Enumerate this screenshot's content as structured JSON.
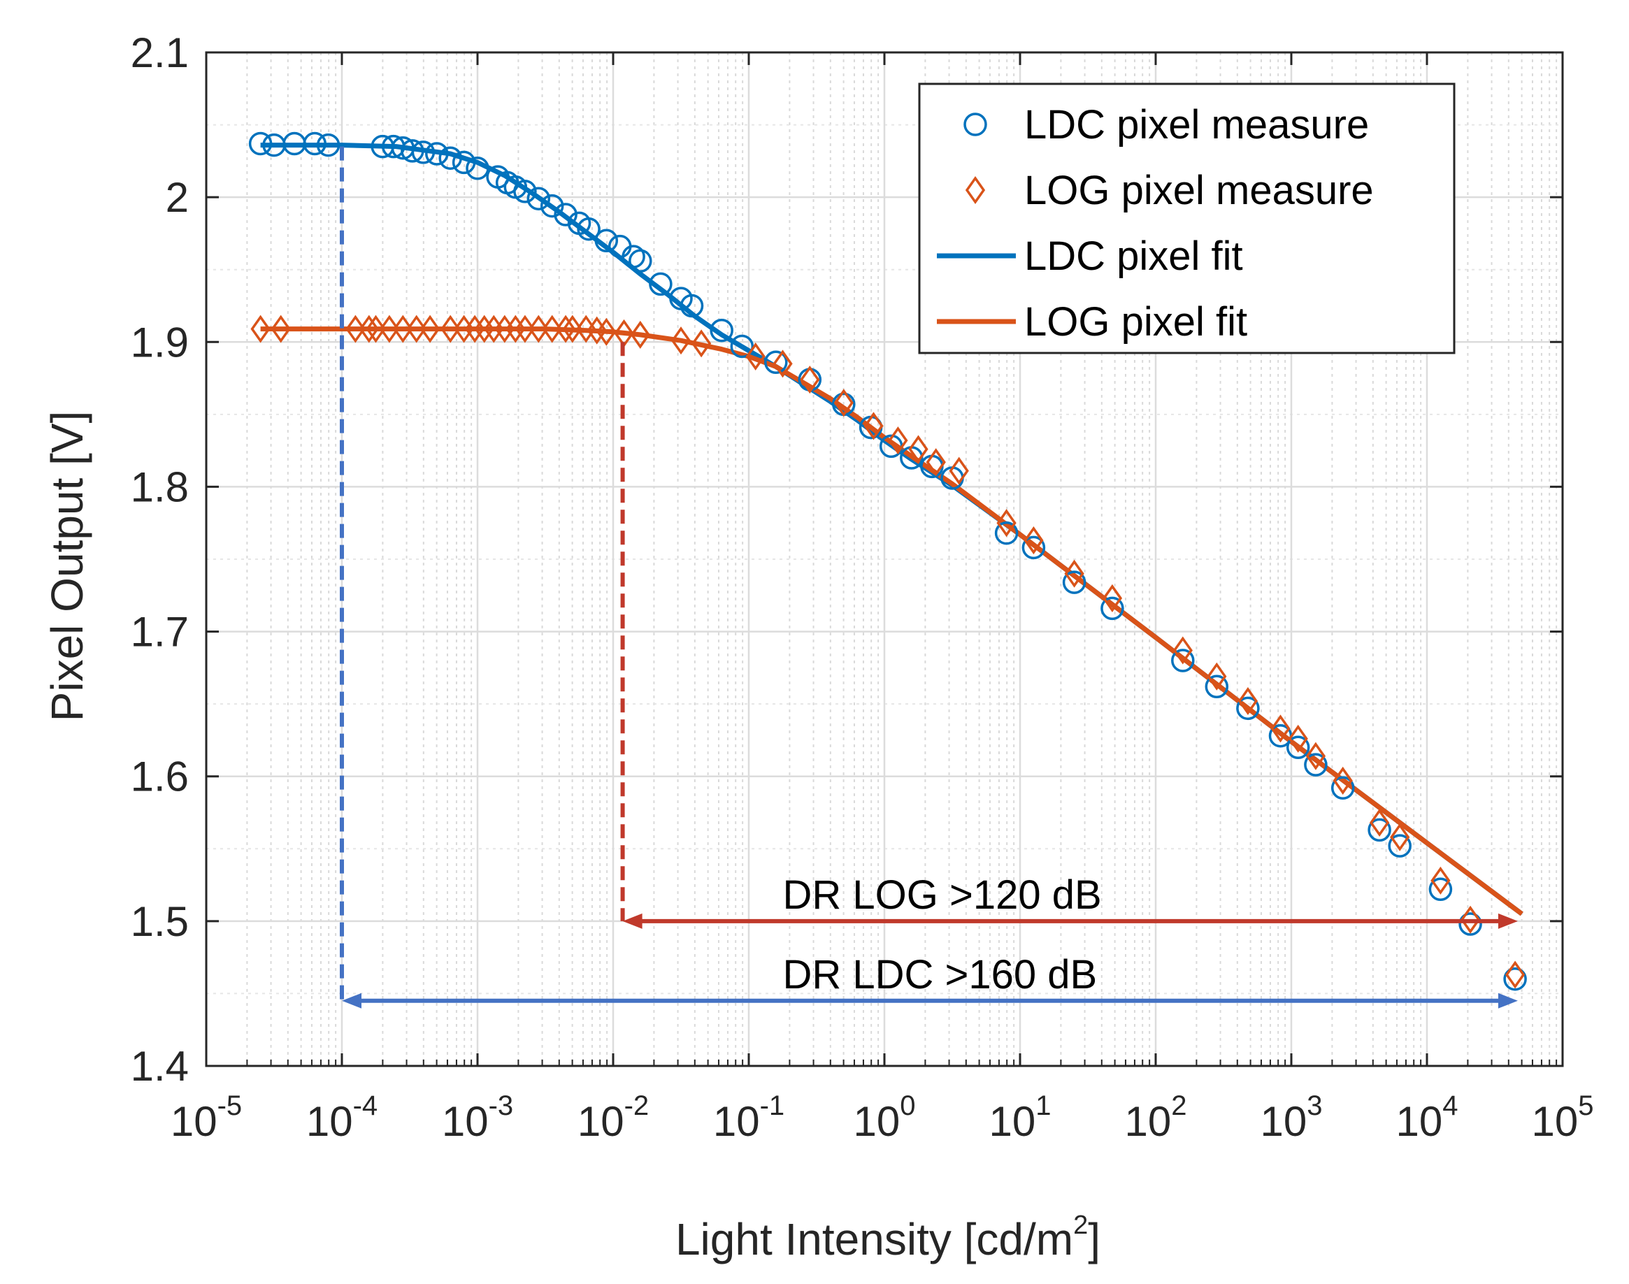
{
  "chart_data": {
    "type": "scatter",
    "xscale": "log",
    "xlabel": "Light Intensity [cd/m",
    "xlabel_sup": "2",
    "xlabel_end": "]",
    "ylabel": "Pixel Output [V]",
    "xlim_exp": [
      -5,
      5
    ],
    "ylim": [
      1.4,
      2.1
    ],
    "grid": true,
    "x_ticks": [
      {
        "base": "10",
        "exp": "-5",
        "e": -5
      },
      {
        "base": "10",
        "exp": "-4",
        "e": -4
      },
      {
        "base": "10",
        "exp": "-3",
        "e": -3
      },
      {
        "base": "10",
        "exp": "-2",
        "e": -2
      },
      {
        "base": "10",
        "exp": "-1",
        "e": -1
      },
      {
        "base": "10",
        "exp": "0",
        "e": 0
      },
      {
        "base": "10",
        "exp": "1",
        "e": 1
      },
      {
        "base": "10",
        "exp": "2",
        "e": 2
      },
      {
        "base": "10",
        "exp": "3",
        "e": 3
      },
      {
        "base": "10",
        "exp": "4",
        "e": 4
      },
      {
        "base": "10",
        "exp": "5",
        "e": 5
      }
    ],
    "y_ticks": [
      {
        "label": "2.1",
        "v": 2.1
      },
      {
        "label": "2",
        "v": 2.0
      },
      {
        "label": "1.9",
        "v": 1.9
      },
      {
        "label": "1.8",
        "v": 1.8
      },
      {
        "label": "1.7",
        "v": 1.7
      },
      {
        "label": "1.6",
        "v": 1.6
      },
      {
        "label": "1.5",
        "v": 1.5
      },
      {
        "label": "1.4",
        "v": 1.4
      }
    ],
    "legend": [
      {
        "label": "LDC pixel measure",
        "marker": "circle",
        "color": "#0072BD"
      },
      {
        "label": "LOG pixel measure",
        "marker": "diamond",
        "color": "#D95319"
      },
      {
        "label": "LDC pixel fit",
        "marker": "line",
        "color": "#0072BD"
      },
      {
        "label": "LOG pixel fit",
        "marker": "line",
        "color": "#D95319"
      }
    ],
    "series": [
      {
        "name": "LDC pixel measure",
        "color": "#0072BD",
        "marker": "circle",
        "points": [
          [
            -4.6,
            2.037
          ],
          [
            -4.5,
            2.036
          ],
          [
            -4.35,
            2.037
          ],
          [
            -4.2,
            2.037
          ],
          [
            -4.1,
            2.036
          ],
          [
            -3.7,
            2.035
          ],
          [
            -3.62,
            2.035
          ],
          [
            -3.55,
            2.034
          ],
          [
            -3.48,
            2.032
          ],
          [
            -3.4,
            2.031
          ],
          [
            -3.3,
            2.03
          ],
          [
            -3.2,
            2.027
          ],
          [
            -3.1,
            2.024
          ],
          [
            -3.0,
            2.02
          ],
          [
            -2.85,
            2.014
          ],
          [
            -2.78,
            2.01
          ],
          [
            -2.72,
            2.007
          ],
          [
            -2.65,
            2.004
          ],
          [
            -2.55,
            1.999
          ],
          [
            -2.45,
            1.994
          ],
          [
            -2.35,
            1.988
          ],
          [
            -2.25,
            1.982
          ],
          [
            -2.18,
            1.978
          ],
          [
            -2.05,
            1.97
          ],
          [
            -1.95,
            1.966
          ],
          [
            -1.85,
            1.959
          ],
          [
            -1.8,
            1.956
          ],
          [
            -1.65,
            1.94
          ],
          [
            -1.5,
            1.93
          ],
          [
            -1.42,
            1.925
          ],
          [
            -1.2,
            1.908
          ],
          [
            -1.05,
            1.897
          ],
          [
            -0.8,
            1.886
          ],
          [
            -0.55,
            1.874
          ],
          [
            -0.3,
            1.857
          ],
          [
            -0.1,
            1.841
          ],
          [
            0.05,
            1.828
          ],
          [
            0.2,
            1.82
          ],
          [
            0.35,
            1.814
          ],
          [
            0.5,
            1.806
          ],
          [
            0.9,
            1.768
          ],
          [
            1.1,
            1.758
          ],
          [
            1.4,
            1.734
          ],
          [
            1.68,
            1.716
          ],
          [
            2.2,
            1.68
          ],
          [
            2.45,
            1.662
          ],
          [
            2.68,
            1.647
          ],
          [
            2.92,
            1.628
          ],
          [
            3.05,
            1.62
          ],
          [
            3.18,
            1.608
          ],
          [
            3.38,
            1.592
          ],
          [
            3.65,
            1.563
          ],
          [
            3.8,
            1.552
          ],
          [
            4.1,
            1.522
          ],
          [
            4.32,
            1.498
          ],
          [
            4.65,
            1.46
          ]
        ]
      },
      {
        "name": "LOG pixel measure",
        "color": "#D95319",
        "marker": "diamond",
        "points": [
          [
            -4.6,
            1.909
          ],
          [
            -4.45,
            1.909
          ],
          [
            -3.9,
            1.909
          ],
          [
            -3.8,
            1.909
          ],
          [
            -3.75,
            1.909
          ],
          [
            -3.65,
            1.909
          ],
          [
            -3.55,
            1.909
          ],
          [
            -3.45,
            1.909
          ],
          [
            -3.35,
            1.909
          ],
          [
            -3.2,
            1.909
          ],
          [
            -3.1,
            1.909
          ],
          [
            -3.02,
            1.909
          ],
          [
            -2.95,
            1.909
          ],
          [
            -2.88,
            1.909
          ],
          [
            -2.8,
            1.909
          ],
          [
            -2.72,
            1.909
          ],
          [
            -2.65,
            1.909
          ],
          [
            -2.55,
            1.909
          ],
          [
            -2.45,
            1.909
          ],
          [
            -2.35,
            1.909
          ],
          [
            -2.3,
            1.909
          ],
          [
            -2.2,
            1.909
          ],
          [
            -2.12,
            1.908
          ],
          [
            -2.05,
            1.907
          ],
          [
            -1.92,
            1.906
          ],
          [
            -1.8,
            1.905
          ],
          [
            -1.5,
            1.901
          ],
          [
            -1.35,
            1.899
          ],
          [
            -0.95,
            1.89
          ],
          [
            -0.75,
            1.885
          ],
          [
            -0.55,
            1.874
          ],
          [
            -0.3,
            1.858
          ],
          [
            -0.08,
            1.842
          ],
          [
            0.1,
            1.832
          ],
          [
            0.25,
            1.826
          ],
          [
            0.38,
            1.817
          ],
          [
            0.55,
            1.811
          ],
          [
            0.9,
            1.775
          ],
          [
            1.1,
            1.763
          ],
          [
            1.4,
            1.74
          ],
          [
            1.68,
            1.723
          ],
          [
            2.2,
            1.687
          ],
          [
            2.45,
            1.669
          ],
          [
            2.68,
            1.652
          ],
          [
            2.92,
            1.633
          ],
          [
            3.05,
            1.626
          ],
          [
            3.18,
            1.614
          ],
          [
            3.38,
            1.597
          ],
          [
            3.65,
            1.568
          ],
          [
            3.8,
            1.558
          ],
          [
            4.1,
            1.528
          ],
          [
            4.32,
            1.501
          ],
          [
            4.65,
            1.463
          ]
        ]
      },
      {
        "name": "LDC pixel fit",
        "color": "#0072BD",
        "type": "line",
        "points": [
          [
            -4.6,
            2.036
          ],
          [
            -4.0,
            2.036
          ],
          [
            -3.6,
            2.035
          ],
          [
            -3.2,
            2.03
          ],
          [
            -3.0,
            2.024
          ],
          [
            -2.8,
            2.015
          ],
          [
            -2.6,
            2.003
          ],
          [
            -2.4,
            1.99
          ],
          [
            -2.2,
            1.976
          ],
          [
            -2.0,
            1.962
          ],
          [
            -1.8,
            1.947
          ],
          [
            -1.6,
            1.933
          ],
          [
            -1.4,
            1.918
          ],
          [
            -1.2,
            1.905
          ],
          [
            -1.0,
            1.894
          ],
          [
            -0.8,
            1.883
          ],
          [
            -0.6,
            1.871
          ],
          [
            -0.4,
            1.859
          ],
          [
            -0.2,
            1.846
          ],
          [
            0.0,
            1.832
          ],
          [
            0.2,
            1.819
          ],
          [
            0.5,
            1.801
          ],
          [
            1.0,
            1.767
          ],
          [
            2.0,
            1.696
          ],
          [
            3.0,
            1.624
          ],
          [
            4.0,
            1.554
          ],
          [
            4.7,
            1.505
          ]
        ]
      },
      {
        "name": "LOG pixel fit",
        "color": "#D95319",
        "type": "line",
        "points": [
          [
            -4.6,
            1.909
          ],
          [
            -3.0,
            1.909
          ],
          [
            -2.5,
            1.909
          ],
          [
            -2.2,
            1.908
          ],
          [
            -2.0,
            1.907
          ],
          [
            -1.8,
            1.905
          ],
          [
            -1.5,
            1.901
          ],
          [
            -1.2,
            1.895
          ],
          [
            -1.0,
            1.89
          ],
          [
            -0.8,
            1.883
          ],
          [
            -0.6,
            1.872
          ],
          [
            -0.4,
            1.861
          ],
          [
            -0.2,
            1.848
          ],
          [
            0.0,
            1.834
          ],
          [
            0.2,
            1.821
          ],
          [
            0.5,
            1.802
          ],
          [
            1.0,
            1.767
          ],
          [
            2.0,
            1.696
          ],
          [
            3.0,
            1.624
          ],
          [
            4.0,
            1.554
          ],
          [
            4.7,
            1.505
          ]
        ]
      }
    ],
    "annotations": [
      {
        "text": "DR  LOG >120 dB",
        "color": "#C0392B",
        "x_start": -1.93,
        "x_end": 4.67,
        "y": 1.5,
        "v_top": 1.9
      },
      {
        "text": "DR  LDC >160 dB",
        "color": "#4472C4",
        "x_start": -4.0,
        "x_end": 4.67,
        "y": 1.445,
        "v_top": 2.035
      }
    ]
  }
}
